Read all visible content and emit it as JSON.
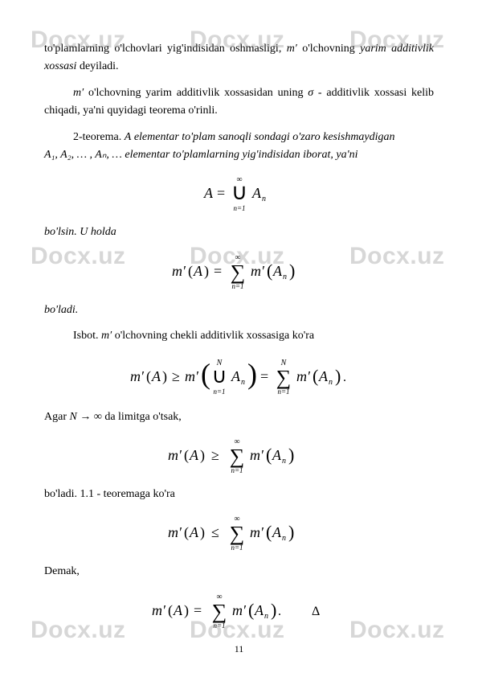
{
  "watermark": "Docx.uz",
  "page_number": "11",
  "text": {
    "p1_a": "to'plamlarning  o'lchovlari  yig'indisidan  oshmasligi, ",
    "p1_b": "  o'lchovning  ",
    "p1_c": "yarim additivlik xossasi",
    "p1_d": " deyiladi.",
    "p2_a": " o'lchovning  yarim  additivlik  xossasidan  uning ",
    "p2_b": " -  additivlik  xossasi kelib chiqadi, ya'ni quyidagi teorema o'rinli.",
    "p3_a": "2-teorema. ",
    "p3_b": "  elementar  to'plam  sanoqli  sondagi  o'zaro  kesishmaydigan ",
    "p3_c": " elementar to'plamlarning yig'indisidan iborat, ya'ni",
    "p4": "bo'lsin. U holda",
    "p5": "bo'ladi.",
    "p6_a": "Isbot. ",
    "p6_b": " o'lchovning chekli additivlik xossasiga ko'ra",
    "p7_a": "Agar ",
    "p7_b": " da limitga o'tsak,",
    "p8": "bo'ladi. 1.1 - teoremaga ko'ra",
    "p9": "Demak,"
  },
  "math": {
    "mprime": "m′",
    "sigma": "σ",
    "A": "A",
    "seq": "A₁, A₂, … , Aₙ, …",
    "Ninf": "N → ∞"
  },
  "style": {
    "page_bg": "#ffffff",
    "text_color": "#000000",
    "watermark_color": "rgba(130,130,130,0.32)",
    "font_family": "Times New Roman",
    "font_size_pt": 11,
    "wm_font_family": "Arial",
    "wm_font_size_pt": 22,
    "wm_weight": 700
  }
}
